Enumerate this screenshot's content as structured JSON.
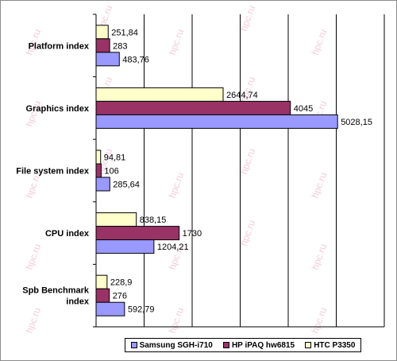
{
  "chart_data": {
    "type": "bar",
    "orientation": "horizontal",
    "categories": [
      "Platform index",
      "Graphics index",
      "File system index",
      "CPU index",
      "Spb Benchmark index"
    ],
    "series": [
      {
        "name": "HTC P3350",
        "color": "#ffffcc",
        "values": [
          251.84,
          2644.74,
          94.81,
          838.15,
          228.9
        ],
        "labels": [
          "251,84",
          "2644,74",
          "94,81",
          "838,15",
          "228,9"
        ]
      },
      {
        "name": "HP iPAQ hw6815",
        "color": "#993366",
        "values": [
          283,
          4045,
          106,
          1730,
          276
        ],
        "labels": [
          "283",
          "4045",
          "106",
          "1730",
          "276"
        ]
      },
      {
        "name": "Samsung SGH-i710",
        "color": "#9999ff",
        "values": [
          483.76,
          5028.15,
          285.64,
          1204.21,
          592.79
        ],
        "labels": [
          "483,76",
          "5028,15",
          "285,64",
          "1204,21",
          "592,79"
        ]
      }
    ],
    "legend_order": [
      "Samsung SGH-i710",
      "HP iPAQ hw6815",
      "HTC P3350"
    ],
    "xlim": [
      0,
      6000
    ],
    "grid": true,
    "legend_position": "bottom",
    "watermark": "hpc.ru"
  }
}
